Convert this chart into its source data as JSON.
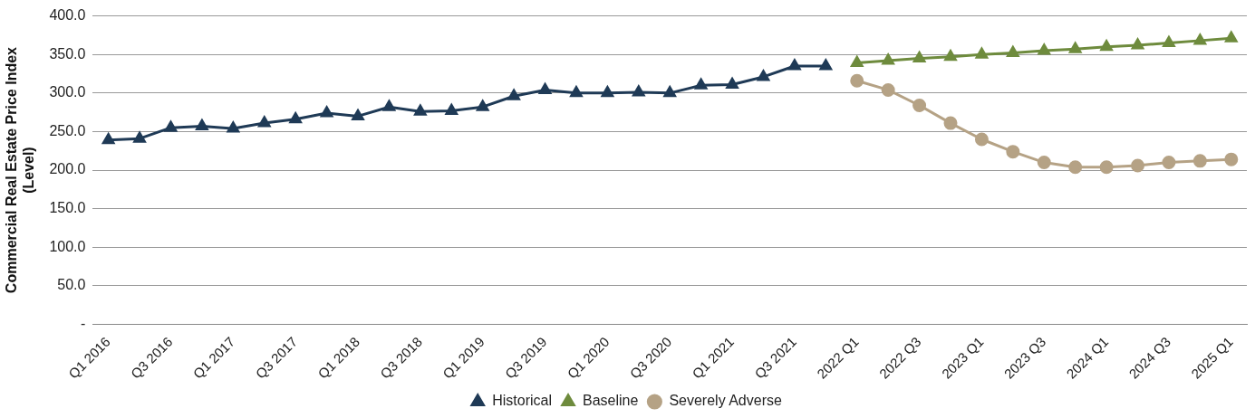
{
  "chart_data": {
    "type": "line",
    "ylabel": "Commercial Real Estate Price Index (Level)",
    "categories": [
      "Q1 2016",
      null,
      "Q3 2016",
      null,
      "Q1 2017",
      null,
      "Q3 2017",
      null,
      "Q1 2018",
      null,
      "Q3 2018",
      null,
      "Q1 2019",
      null,
      "Q3 2019",
      null,
      "Q1 2020",
      null,
      "Q3 2020",
      null,
      "Q1 2021",
      null,
      "Q3 2021",
      null,
      "2022 Q1",
      null,
      "2022 Q3",
      null,
      "2023 Q1",
      null,
      "2023 Q3",
      null,
      "2024 Q1",
      null,
      "2024 Q3",
      null,
      "2025 Q1"
    ],
    "series": [
      {
        "name": "Historical",
        "color": "#1f3a56",
        "marker": "triangle",
        "values": [
          239,
          241,
          255,
          257,
          254,
          261,
          266,
          274,
          270,
          282,
          276,
          277,
          282,
          296,
          304,
          300,
          300,
          301,
          300,
          310,
          311,
          321,
          335,
          335,
          null,
          null,
          null,
          null,
          null,
          null,
          null,
          null,
          null,
          null,
          null,
          null,
          null
        ]
      },
      {
        "name": "Baseline",
        "color": "#6e8b3d",
        "marker": "triangle",
        "values": [
          null,
          null,
          null,
          null,
          null,
          null,
          null,
          null,
          null,
          null,
          null,
          null,
          null,
          null,
          null,
          null,
          null,
          null,
          null,
          null,
          null,
          null,
          null,
          null,
          339,
          342,
          345,
          347,
          350,
          352,
          355,
          357,
          360,
          362,
          365,
          368,
          371
        ]
      },
      {
        "name": "Severely Adverse",
        "color": "#b5a285",
        "marker": "circle",
        "values": [
          null,
          null,
          null,
          null,
          null,
          null,
          null,
          null,
          null,
          null,
          null,
          null,
          null,
          null,
          null,
          null,
          null,
          null,
          null,
          null,
          null,
          null,
          null,
          null,
          316,
          304,
          284,
          261,
          240,
          224,
          210,
          204,
          204,
          206,
          210,
          212,
          214
        ]
      }
    ],
    "ylim": [
      0,
      400
    ],
    "yticks": [
      {
        "value": 0,
        "label": "-"
      },
      {
        "value": 50,
        "label": "50.0"
      },
      {
        "value": 100,
        "label": "100.0"
      },
      {
        "value": 150,
        "label": "150.0"
      },
      {
        "value": 200,
        "label": "200.0"
      },
      {
        "value": 250,
        "label": "250.0"
      },
      {
        "value": 300,
        "label": "300.0"
      },
      {
        "value": 350,
        "label": "350.0"
      },
      {
        "value": 400,
        "label": "400.0"
      }
    ],
    "grid": "y",
    "legend": "bottom",
    "line_style": "solid"
  }
}
